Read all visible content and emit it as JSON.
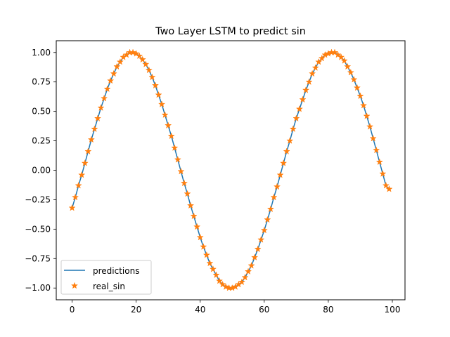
{
  "chart_data": {
    "type": "line",
    "title": "Two Layer LSTM to predict sin",
    "xlabel": "",
    "ylabel": "",
    "xlim": [
      -4.95,
      103.95
    ],
    "ylim": [
      -1.1,
      1.1
    ],
    "xticks": [
      0,
      20,
      40,
      60,
      80,
      100
    ],
    "xtick_labels": [
      "0",
      "20",
      "40",
      "60",
      "80",
      "100"
    ],
    "yticks": [
      -1.0,
      -0.75,
      -0.5,
      -0.25,
      0.0,
      0.25,
      0.5,
      0.75,
      1.0
    ],
    "ytick_labels": [
      "−1.00",
      "−0.75",
      "−0.50",
      "−0.25",
      "0.00",
      "0.25",
      "0.50",
      "0.75",
      "1.00"
    ],
    "grid": false,
    "legend_position": "lower left",
    "x_start": 0,
    "x_step": 1,
    "series": [
      {
        "name": "predictions",
        "style": "line",
        "color": "#1f77b4",
        "values": [
          -0.32,
          -0.23,
          -0.13,
          -0.04,
          0.06,
          0.16,
          0.26,
          0.35,
          0.44,
          0.53,
          0.61,
          0.69,
          0.76,
          0.82,
          0.88,
          0.92,
          0.96,
          0.98,
          1.0,
          1.0,
          0.99,
          0.97,
          0.94,
          0.9,
          0.85,
          0.79,
          0.72,
          0.64,
          0.56,
          0.47,
          0.38,
          0.29,
          0.19,
          0.09,
          -0.01,
          -0.11,
          -0.2,
          -0.3,
          -0.39,
          -0.48,
          -0.57,
          -0.65,
          -0.72,
          -0.79,
          -0.84,
          -0.89,
          -0.94,
          -0.97,
          -0.99,
          -1.0,
          -1.0,
          -0.99,
          -0.97,
          -0.95,
          -0.91,
          -0.86,
          -0.81,
          -0.74,
          -0.67,
          -0.59,
          -0.51,
          -0.42,
          -0.33,
          -0.23,
          -0.14,
          -0.04,
          0.06,
          0.16,
          0.25,
          0.35,
          0.44,
          0.52,
          0.6,
          0.68,
          0.75,
          0.82,
          0.87,
          0.92,
          0.95,
          0.98,
          0.99,
          1.0,
          1.0,
          0.98,
          0.96,
          0.93,
          0.88,
          0.83,
          0.77,
          0.7,
          0.63,
          0.55,
          0.46,
          0.37,
          0.27,
          0.17,
          0.07,
          -0.03,
          -0.13,
          -0.16
        ]
      },
      {
        "name": "real_sin",
        "style": "star",
        "color": "#ff7f0e",
        "values": [
          -0.32,
          -0.23,
          -0.13,
          -0.04,
          0.06,
          0.16,
          0.26,
          0.35,
          0.44,
          0.53,
          0.61,
          0.69,
          0.76,
          0.82,
          0.88,
          0.92,
          0.96,
          0.98,
          1.0,
          1.0,
          0.99,
          0.97,
          0.94,
          0.9,
          0.85,
          0.79,
          0.72,
          0.64,
          0.56,
          0.47,
          0.38,
          0.29,
          0.19,
          0.09,
          -0.01,
          -0.11,
          -0.2,
          -0.3,
          -0.39,
          -0.48,
          -0.57,
          -0.65,
          -0.72,
          -0.79,
          -0.84,
          -0.89,
          -0.94,
          -0.97,
          -0.99,
          -1.0,
          -1.0,
          -0.99,
          -0.97,
          -0.95,
          -0.91,
          -0.86,
          -0.81,
          -0.74,
          -0.67,
          -0.59,
          -0.51,
          -0.42,
          -0.33,
          -0.23,
          -0.14,
          -0.04,
          0.06,
          0.16,
          0.25,
          0.35,
          0.44,
          0.52,
          0.6,
          0.68,
          0.75,
          0.82,
          0.87,
          0.92,
          0.95,
          0.98,
          0.99,
          1.0,
          1.0,
          0.98,
          0.96,
          0.93,
          0.88,
          0.83,
          0.77,
          0.7,
          0.63,
          0.55,
          0.46,
          0.37,
          0.27,
          0.17,
          0.07,
          -0.03,
          -0.13,
          -0.16
        ]
      }
    ]
  }
}
